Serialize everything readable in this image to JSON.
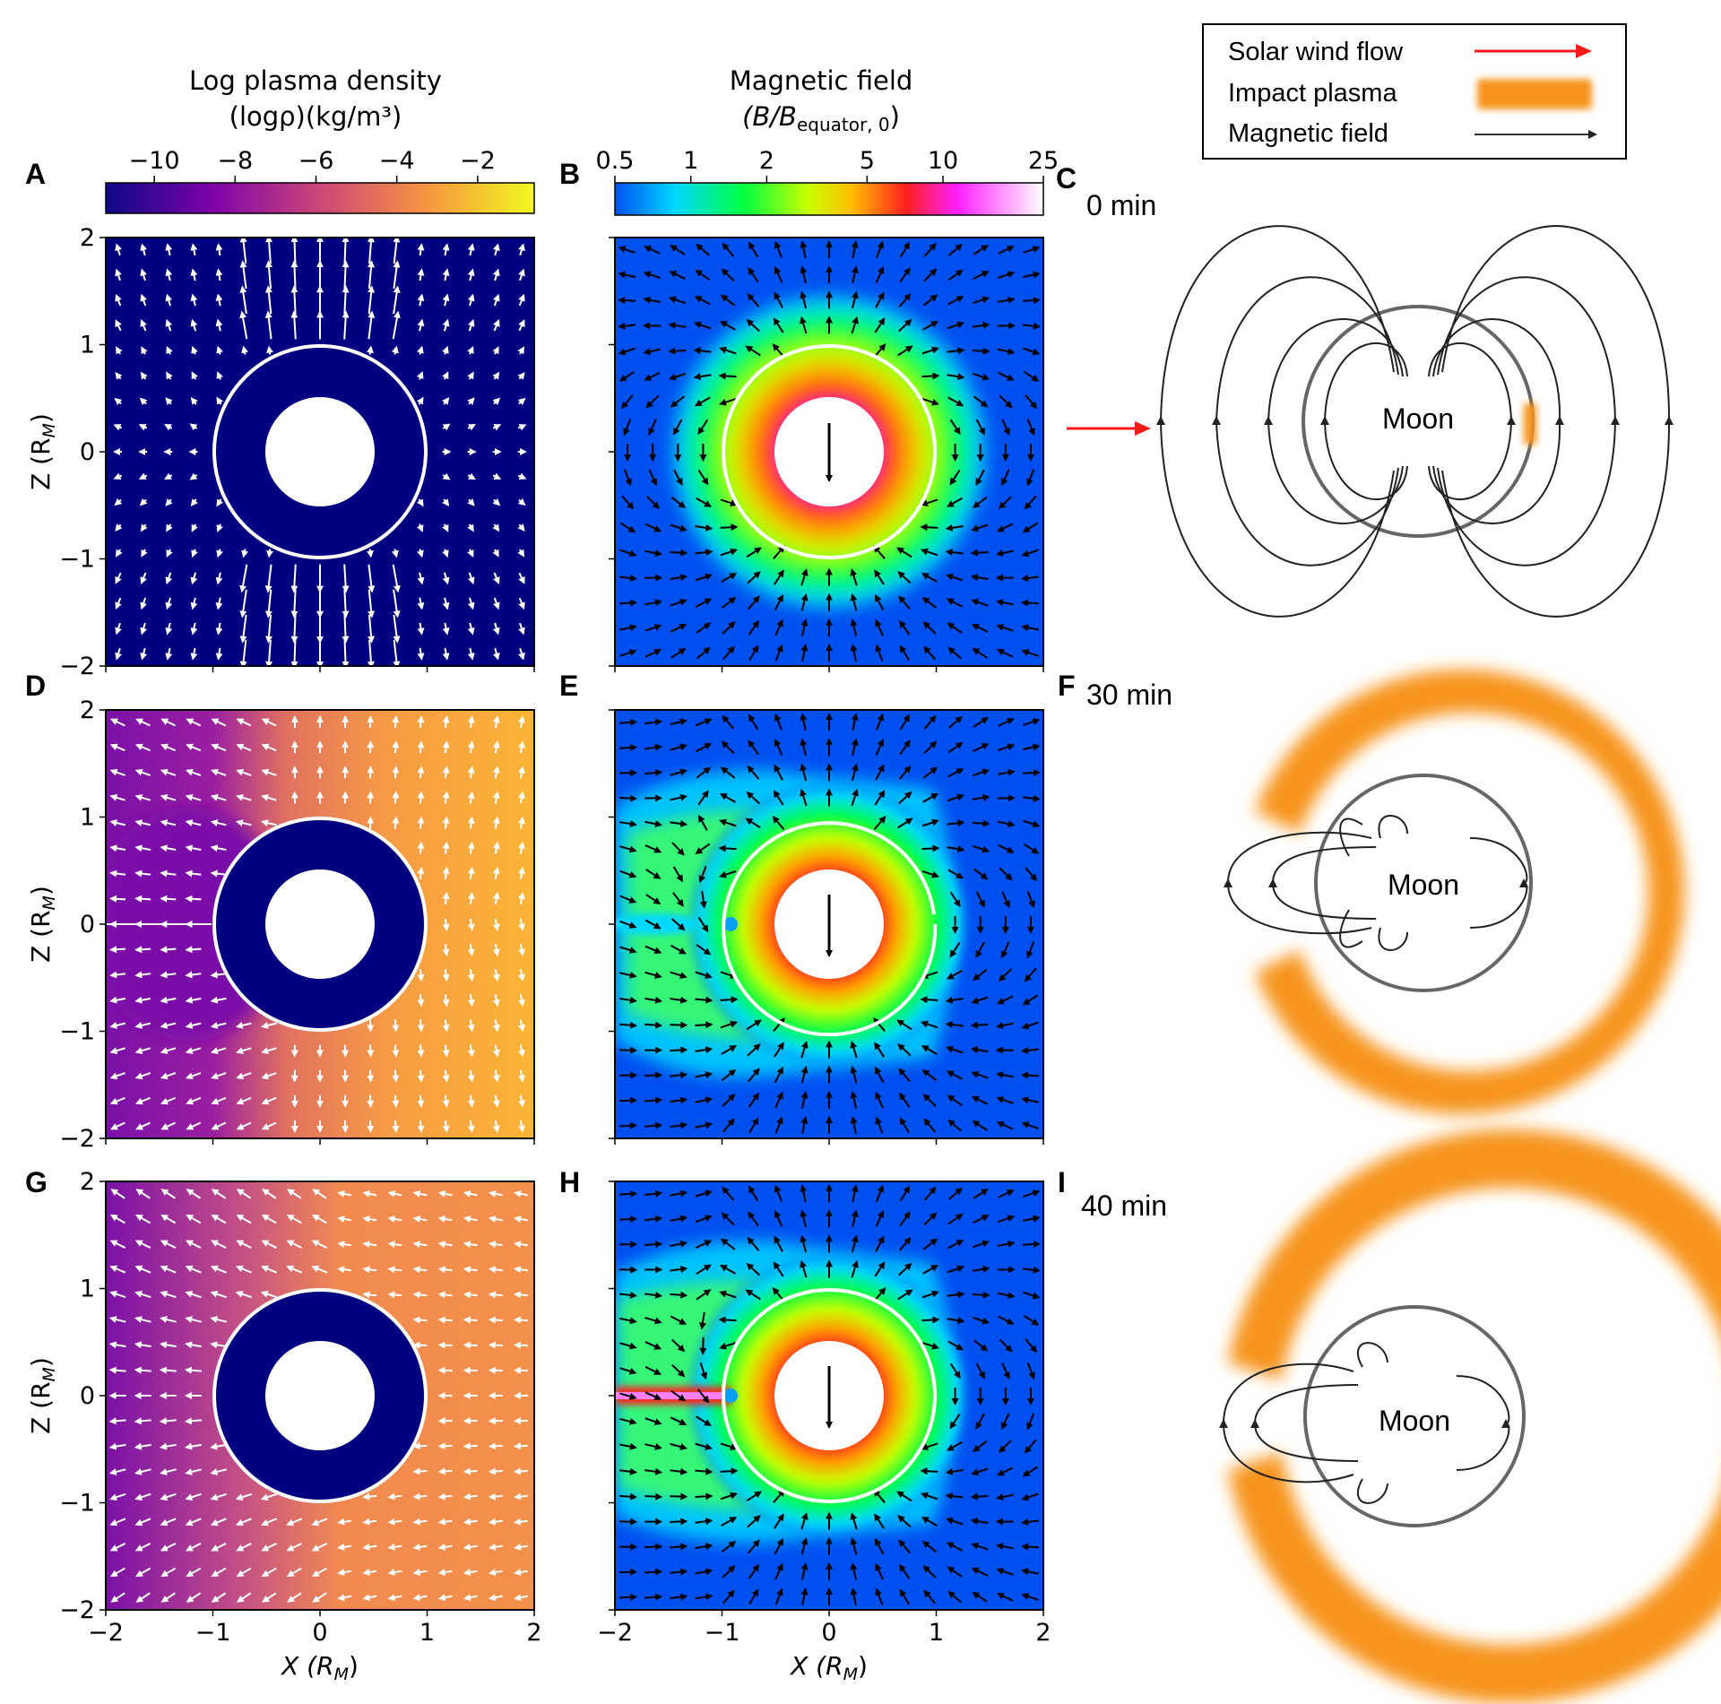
{
  "colorbar_density": {
    "title_line1": "Log plasma density",
    "title_line2": "(logρ)(kg/m³)",
    "ticks": [
      "−10",
      "−8",
      "−6",
      "−4",
      "−2"
    ],
    "tick_values": [
      -10,
      -8,
      -6,
      -4,
      -2
    ],
    "range": [
      -11.2,
      -0.6
    ],
    "colors": [
      "#0d0887",
      "#7e03a8",
      "#cc4778",
      "#f89540",
      "#f0f921"
    ]
  },
  "colorbar_field": {
    "title_line1": "Magnetic field",
    "title_line2": "(B/B",
    "title_sub": "equator, 0",
    "title_close": ")",
    "ticks": [
      "0.5",
      "1",
      "2",
      "5",
      "10",
      "25"
    ],
    "tick_values": [
      0.5,
      1,
      2,
      5,
      10,
      25
    ],
    "colors": [
      "#0000ff",
      "#00ffff",
      "#00ff00",
      "#ffff00",
      "#ff8000",
      "#ff0000",
      "#ff00ff",
      "#ffffff"
    ]
  },
  "legend": {
    "items": [
      {
        "label": "Solar wind flow",
        "symbol": "red-arrow",
        "color": "#ff1a1a"
      },
      {
        "label": "Impact plasma",
        "symbol": "orange-blur",
        "color": "#f7941d"
      },
      {
        "label": "Magnetic field",
        "symbol": "black-arrow",
        "color": "#333333"
      }
    ]
  },
  "panels": {
    "A": "A",
    "B": "B",
    "C": "C",
    "D": "D",
    "E": "E",
    "F": "F",
    "G": "G",
    "H": "H",
    "I": "I"
  },
  "times": {
    "C": "0 min",
    "F": "30 min",
    "I": "40 min"
  },
  "moon_label": "Moon",
  "axes": {
    "xlabel": "X (R",
    "xlabel_sub": "M",
    "ylabel": "Z (R",
    "ylabel_sub": "M",
    "label_close": ")",
    "x_ticks": [
      "−2",
      "−1",
      "0",
      "1",
      "2"
    ],
    "y_ticks": [
      "2",
      "1",
      "0",
      "−1",
      "−2"
    ],
    "range": [
      -2,
      2
    ]
  },
  "colors": {
    "dark_blue": "#000080",
    "field_background": "#0050f0",
    "impact_orange": "#f7941d",
    "wind_red": "#ff1a1a"
  }
}
